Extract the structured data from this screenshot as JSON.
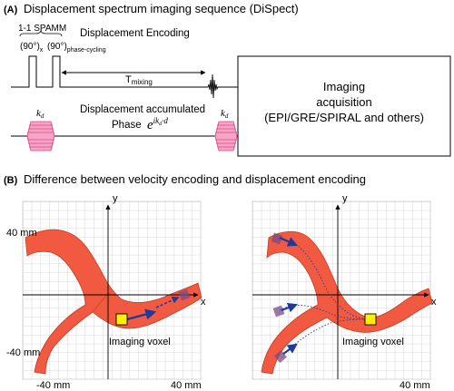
{
  "panel_a": {
    "label": "(A)",
    "title": "Displacement spectrum imaging sequence (DiSpect)",
    "spamm_label": "1-1 SPAMM",
    "pulse_1": "(90°)",
    "pulse_1_sub": "x",
    "pulse_2": "(90°)",
    "pulse_2_sub": "phase-cycling",
    "encoding_label": "Displacement Encoding",
    "tmixing_main": "T",
    "tmixing_sub": "mixing",
    "accumulated_label": "Displacement accumulated",
    "phase_label": "Phase",
    "phase_formula_base": "e",
    "phase_formula_exp": "ik",
    "phase_formula_exp_sub": "d",
    "phase_formula_exp_tail": "·d",
    "kd_label_1": "k",
    "kd_label_1_sub": "d",
    "kd_label_2": "k",
    "kd_label_2_sub": "d",
    "acq_line_1": "Imaging",
    "acq_line_2": "acquisition",
    "acq_line_3": "(EPI/GRE/SPIRAL and others)"
  },
  "panel_b": {
    "label": "(B)",
    "title": "Difference between velocity encoding and displacement encoding",
    "left": {
      "y_axis": "y",
      "x_axis": "x",
      "y_top": "40 mm",
      "y_bottom": "-40 mm",
      "x_left": "-40 mm",
      "x_right": "40 mm",
      "voxel_label": "Imaging voxel"
    },
    "right": {
      "y_axis": "y",
      "x_axis": "x",
      "voxel_label": "Imaging voxel",
      "x_right": "40 mm"
    }
  },
  "colors": {
    "vessel": "#f15a40",
    "vessel_edge": "#c23a22",
    "grid": "#b8b8b8",
    "gradient_fill": "#f4a6c4",
    "gradient_line": "#e0408a",
    "voxel": "#ffef00",
    "arrow": "#1f3a9a",
    "tissue_block": "#7a4a8a"
  }
}
